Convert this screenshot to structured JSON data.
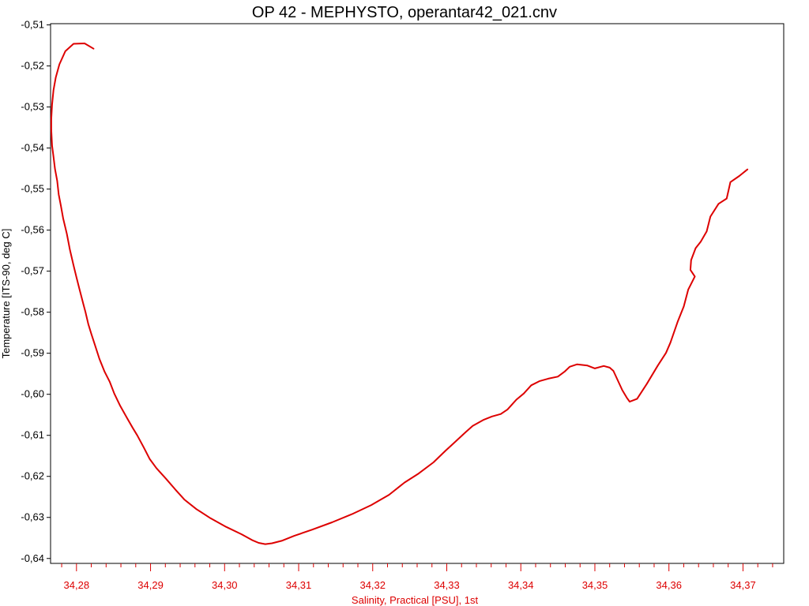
{
  "chart_data": {
    "type": "line",
    "title": "OP 42 - MEPHYSTO, operantar42_021.cnv",
    "xlabel": "Salinity, Practical [PSU], 1st",
    "ylabel": "Temperature [ITS-90, deg C]",
    "xlim": [
      34.2765,
      34.3755
    ],
    "ylim": [
      -0.6412,
      -0.5097
    ],
    "x_ticks": [
      34.28,
      34.29,
      34.3,
      34.31,
      34.32,
      34.33,
      34.34,
      34.35,
      34.36,
      34.37
    ],
    "x_tick_labels": [
      "34,28",
      "34,29",
      "34,30",
      "34,31",
      "34,32",
      "34,33",
      "34,34",
      "34,35",
      "34,36",
      "34,37"
    ],
    "x_minor_step": 0.002,
    "y_ticks": [
      -0.51,
      -0.52,
      -0.53,
      -0.54,
      -0.55,
      -0.56,
      -0.57,
      -0.58,
      -0.59,
      -0.6,
      -0.61,
      -0.62,
      -0.63,
      -0.64
    ],
    "y_tick_labels": [
      "-0,51",
      "-0,52",
      "-0,53",
      "-0,54",
      "-0,55",
      "-0,56",
      "-0,57",
      "-0,58",
      "-0,59",
      "-0,60",
      "-0,61",
      "-0,62",
      "-0,63",
      "-0,64"
    ],
    "grid": false,
    "colors": {
      "series": "#dd0000",
      "x_axis_text": "#dd0000",
      "y_axis_text": "#000000",
      "frame": "#000000"
    },
    "series": [
      {
        "points": [
          [
            34.3706,
            -0.5452
          ],
          [
            34.3695,
            -0.5468
          ],
          [
            34.3683,
            -0.5483
          ],
          [
            34.3678,
            -0.5523
          ],
          [
            34.3667,
            -0.5536
          ],
          [
            34.3656,
            -0.5567
          ],
          [
            34.3651,
            -0.5603
          ],
          [
            34.3643,
            -0.5628
          ],
          [
            34.3636,
            -0.5644
          ],
          [
            34.363,
            -0.5673
          ],
          [
            34.3629,
            -0.5697
          ],
          [
            34.3635,
            -0.5713
          ],
          [
            34.3626,
            -0.5745
          ],
          [
            34.362,
            -0.5786
          ],
          [
            34.3612,
            -0.5822
          ],
          [
            34.3602,
            -0.5874
          ],
          [
            34.3596,
            -0.5899
          ],
          [
            34.3585,
            -0.593
          ],
          [
            34.357,
            -0.5975
          ],
          [
            34.3557,
            -0.6011
          ],
          [
            34.3547,
            -0.6018
          ],
          [
            34.3543,
            -0.6008
          ],
          [
            34.3537,
            -0.599
          ],
          [
            34.3525,
            -0.5943
          ],
          [
            34.352,
            -0.5935
          ],
          [
            34.3512,
            -0.5931
          ],
          [
            34.35,
            -0.5937
          ],
          [
            34.349,
            -0.593
          ],
          [
            34.3476,
            -0.5927
          ],
          [
            34.3466,
            -0.5933
          ],
          [
            34.3459,
            -0.5945
          ],
          [
            34.345,
            -0.5957
          ],
          [
            34.3437,
            -0.5962
          ],
          [
            34.3425,
            -0.5968
          ],
          [
            34.3414,
            -0.5978
          ],
          [
            34.3404,
            -0.5998
          ],
          [
            34.3394,
            -0.6013
          ],
          [
            34.3382,
            -0.6037
          ],
          [
            34.3373,
            -0.6048
          ],
          [
            34.3361,
            -0.6054
          ],
          [
            34.335,
            -0.6062
          ],
          [
            34.3335,
            -0.6077
          ],
          [
            34.3325,
            -0.6093
          ],
          [
            34.331,
            -0.6118
          ],
          [
            34.3298,
            -0.6138
          ],
          [
            34.3282,
            -0.6166
          ],
          [
            34.3262,
            -0.6193
          ],
          [
            34.3243,
            -0.6215
          ],
          [
            34.3222,
            -0.6245
          ],
          [
            34.3198,
            -0.627
          ],
          [
            34.3172,
            -0.6292
          ],
          [
            34.3145,
            -0.6312
          ],
          [
            34.3118,
            -0.633
          ],
          [
            34.3094,
            -0.6345
          ],
          [
            34.3077,
            -0.6357
          ],
          [
            34.3064,
            -0.6363
          ],
          [
            34.3055,
            -0.6365
          ],
          [
            34.3046,
            -0.6362
          ],
          [
            34.3037,
            -0.6355
          ],
          [
            34.3023,
            -0.6341
          ],
          [
            34.3002,
            -0.6323
          ],
          [
            34.2981,
            -0.6302
          ],
          [
            34.2962,
            -0.628
          ],
          [
            34.2946,
            -0.6257
          ],
          [
            34.2933,
            -0.6231
          ],
          [
            34.2921,
            -0.6206
          ],
          [
            34.2908,
            -0.618
          ],
          [
            34.2899,
            -0.6158
          ],
          [
            34.2891,
            -0.613
          ],
          [
            34.2882,
            -0.61
          ],
          [
            34.2876,
            -0.6082
          ],
          [
            34.2868,
            -0.6057
          ],
          [
            34.2859,
            -0.6028
          ],
          [
            34.2851,
            -0.5998
          ],
          [
            34.2845,
            -0.597
          ],
          [
            34.2838,
            -0.5945
          ],
          [
            34.2831,
            -0.5914
          ],
          [
            34.2825,
            -0.588
          ],
          [
            34.282,
            -0.5853
          ],
          [
            34.2816,
            -0.5829
          ],
          [
            34.2812,
            -0.5799
          ],
          [
            34.2809,
            -0.5778
          ],
          [
            34.2804,
            -0.5744
          ],
          [
            34.28,
            -0.5715
          ],
          [
            34.2796,
            -0.5686
          ],
          [
            34.2791,
            -0.5647
          ],
          [
            34.2787,
            -0.5609
          ],
          [
            34.2782,
            -0.5571
          ],
          [
            34.2779,
            -0.5541
          ],
          [
            34.2776,
            -0.5513
          ],
          [
            34.2774,
            -0.548
          ],
          [
            34.2771,
            -0.5451
          ],
          [
            34.2769,
            -0.5421
          ],
          [
            34.2767,
            -0.5394
          ],
          [
            34.2766,
            -0.5356
          ],
          [
            34.2766,
            -0.5329
          ],
          [
            34.2767,
            -0.5294
          ],
          [
            34.2769,
            -0.5259
          ],
          [
            34.2772,
            -0.5228
          ],
          [
            34.2777,
            -0.5196
          ],
          [
            34.2785,
            -0.5164
          ],
          [
            34.2796,
            -0.5146
          ],
          [
            34.2811,
            -0.5145
          ],
          [
            34.2823,
            -0.5158
          ]
        ]
      }
    ]
  }
}
